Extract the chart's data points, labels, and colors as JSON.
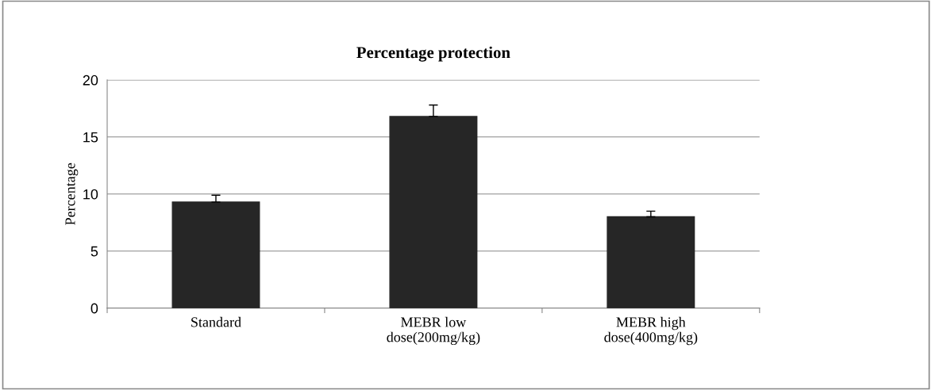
{
  "chart_data": {
    "type": "bar",
    "title": "Percentage protection",
    "ylabel": "Percentage",
    "categories": [
      "Standard",
      "MEBR low\ndose(200mg/kg)",
      "MEBR high\ndose(400mg/kg)"
    ],
    "values": [
      9.3,
      16.8,
      8.0
    ],
    "errors": [
      [
        9.3,
        9.9
      ],
      [
        16.8,
        17.8
      ],
      [
        8.0,
        8.5
      ]
    ],
    "color": "#262626",
    "ylim": [
      0,
      20
    ],
    "yticks": [
      0,
      5,
      10,
      15,
      20
    ],
    "grid": "y",
    "legend": false
  }
}
